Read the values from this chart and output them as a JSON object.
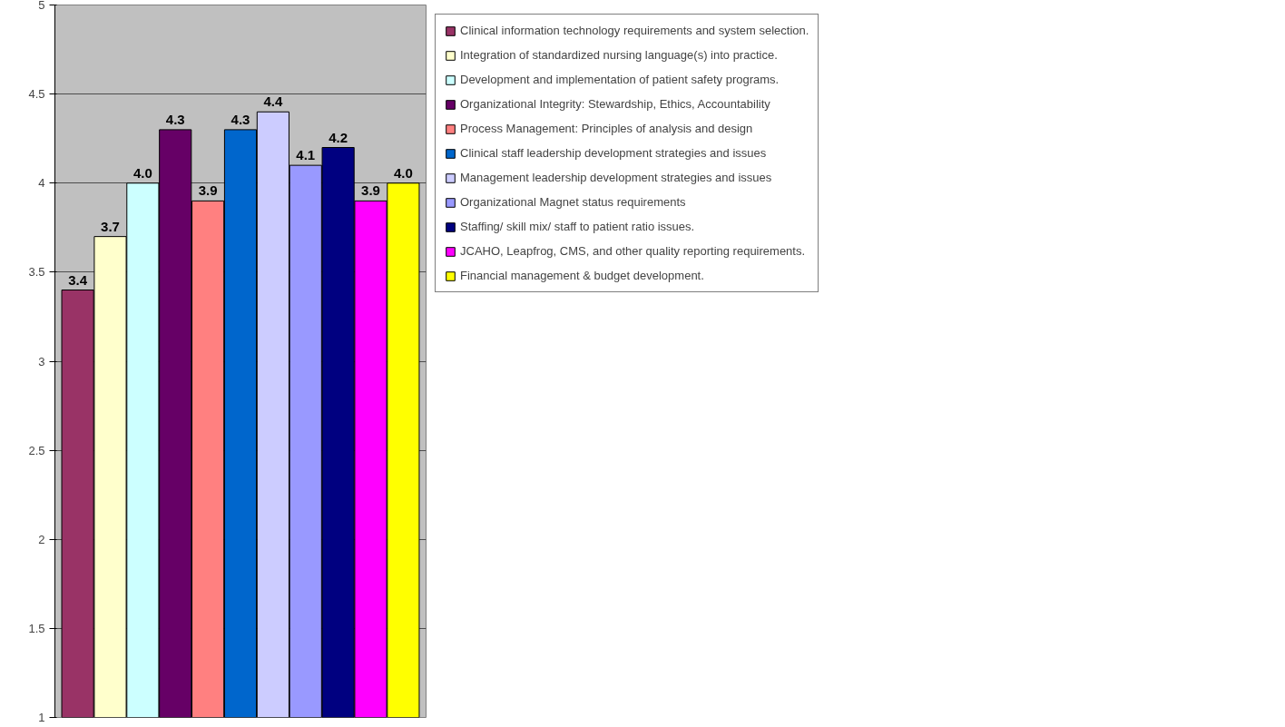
{
  "chart_data": {
    "type": "bar",
    "categories": [
      null
    ],
    "ylim": [
      1,
      5
    ],
    "yticks": [
      1,
      1.5,
      2,
      2.5,
      3,
      3.5,
      4,
      4.5,
      5
    ],
    "grid": "y",
    "legend": "right",
    "series": [
      {
        "name": "Clinical information technology requirements and system selection.",
        "color": "#993366",
        "values": [
          3.4
        ],
        "value_labels": [
          "3.4"
        ]
      },
      {
        "name": "Integration of standardized nursing language(s) into practice.",
        "color": "#ffffcc",
        "values": [
          3.7
        ],
        "value_labels": [
          "3.7"
        ]
      },
      {
        "name": "Development and implementation of patient safety programs.",
        "color": "#ccffff",
        "values": [
          4.0
        ],
        "value_labels": [
          "4.0"
        ]
      },
      {
        "name": "Organizational Integrity: Stewardship, Ethics, Accountability",
        "color": "#660066",
        "values": [
          4.3
        ],
        "value_labels": [
          "4.3"
        ]
      },
      {
        "name": "Process Management: Principles of analysis and design",
        "color": "#ff8080",
        "values": [
          3.9
        ],
        "value_labels": [
          "3.9"
        ]
      },
      {
        "name": "Clinical staff leadership development strategies and issues",
        "color": "#0066cc",
        "values": [
          4.3
        ],
        "value_labels": [
          "4.3"
        ]
      },
      {
        "name": "Management leadership development strategies and issues",
        "color": "#ccccff",
        "values": [
          4.4
        ],
        "value_labels": [
          "4.4"
        ]
      },
      {
        "name": "Organizational Magnet status requirements",
        "color": "#9999ff",
        "values": [
          4.1
        ],
        "value_labels": [
          "4.1"
        ]
      },
      {
        "name": "Staffing/ skill mix/ staff to patient ratio issues.",
        "color": "#000080",
        "values": [
          4.2
        ],
        "value_labels": [
          "4.2"
        ]
      },
      {
        "name": "JCAHO, Leapfrog, CMS, and other quality reporting requirements.",
        "color": "#ff00ff",
        "values": [
          3.9
        ],
        "value_labels": [
          "3.9"
        ]
      },
      {
        "name": "Financial management & budget development.",
        "color": "#ffff00",
        "values": [
          4.0
        ],
        "value_labels": [
          "4.0"
        ]
      }
    ]
  }
}
